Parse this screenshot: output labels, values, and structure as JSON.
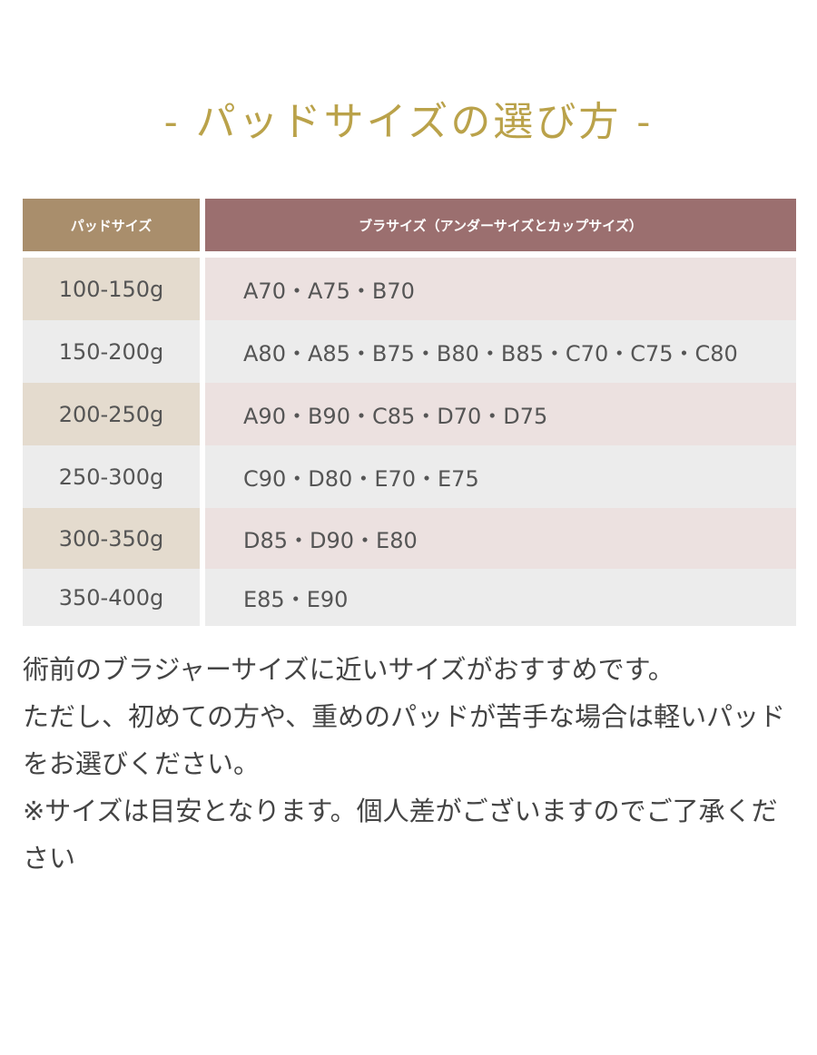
{
  "header": {
    "title": "- パッドサイズの選び方 -"
  },
  "table": {
    "columns": [
      "パッドサイズ",
      "ブラサイズ（アンダーサイズとカップサイズ）"
    ],
    "rows": [
      [
        "100-150g",
        "A70・A75・B70"
      ],
      [
        "150-200g",
        "A80・A85・B75・B80・B85・C70・C75・C80"
      ],
      [
        "200-250g",
        "A90・B90・C85・D70・D75"
      ],
      [
        "250-300g",
        "C90・D80・E70・E75"
      ],
      [
        "300-350g",
        "D85・D90・E80"
      ],
      [
        "350-400g",
        "E85・E90"
      ]
    ]
  },
  "notes": [
    "術前のブラジャーサイズに近いサイズがおすすめです。",
    "ただし、初めての方や、重めのパッドが苦手な場合は軽いパッドをお選びください。",
    "※サイズは目安となります。個人差がございますのでご了承ください"
  ]
}
